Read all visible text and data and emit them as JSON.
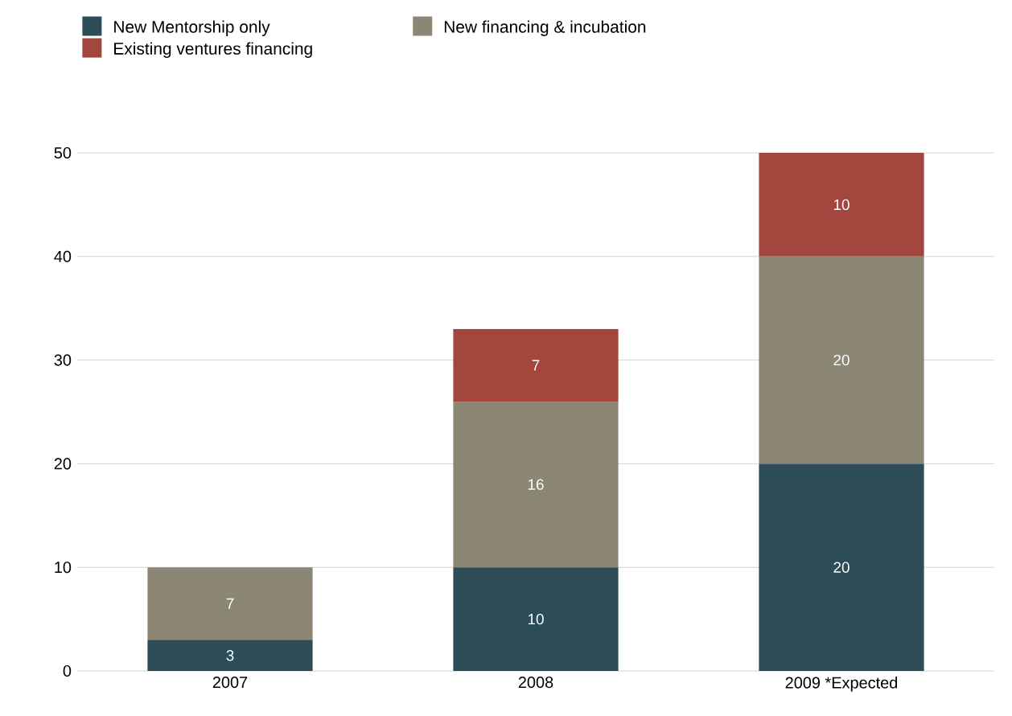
{
  "chart_data": {
    "type": "bar",
    "stacked": true,
    "categories": [
      "2007",
      "2008",
      "2009 *Expected"
    ],
    "series": [
      {
        "name": "New Mentorship only",
        "color": "#2c4d58",
        "values": [
          3,
          10,
          20
        ]
      },
      {
        "name": "New financing & incubation",
        "color": "#8c8675",
        "values": [
          7,
          16,
          20
        ]
      },
      {
        "name": "Existing ventures financing",
        "color": "#a2463e",
        "values": [
          null,
          7,
          10
        ]
      }
    ],
    "ylim": [
      0,
      50
    ],
    "yticks": [
      0,
      10,
      20,
      30,
      40,
      50
    ],
    "grid": "y",
    "legend": "top",
    "data_labels": true
  }
}
